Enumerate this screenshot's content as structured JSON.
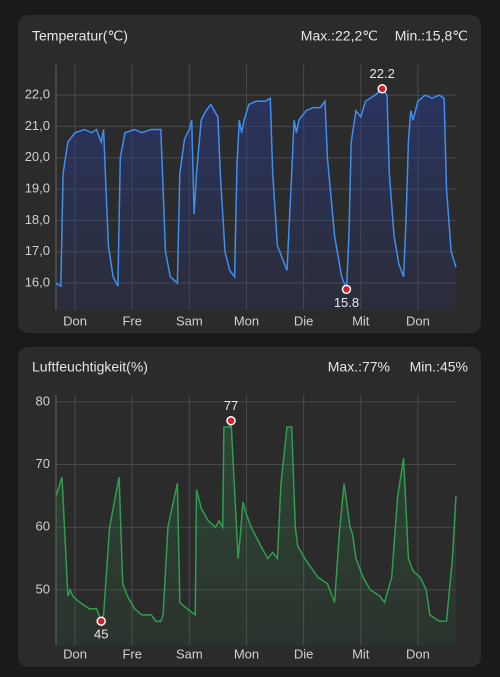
{
  "chart_data": [
    {
      "type": "line",
      "title": "Temperatur(℃)",
      "max_label": "Max.:22,2℃",
      "min_label": "Min.:15,8℃",
      "x": [
        0,
        2,
        3,
        5,
        8,
        12,
        15,
        17,
        19,
        20,
        21,
        22,
        24,
        26,
        27,
        29,
        33,
        36,
        40,
        44,
        45,
        46,
        48,
        51,
        52,
        54,
        56,
        57,
        58,
        59,
        61,
        63,
        65,
        68,
        69,
        71,
        73,
        75,
        76,
        77,
        78,
        79,
        81,
        84,
        88,
        90,
        91,
        93,
        95,
        97,
        99,
        100,
        101,
        102,
        105,
        108,
        111,
        113,
        114,
        117,
        120,
        122,
        123,
        124,
        126,
        128,
        130,
        134,
        137,
        139,
        140,
        142,
        144,
        146,
        147,
        148,
        149,
        150,
        152,
        155,
        158,
        161,
        163,
        164,
        166,
        168
      ],
      "series": [
        {
          "color": "#3d8ef0",
          "values": [
            16.0,
            15.9,
            19.5,
            20.5,
            20.8,
            20.9,
            20.8,
            20.9,
            20.5,
            20.9,
            19.0,
            17.2,
            16.2,
            15.9,
            20.0,
            20.8,
            20.9,
            20.8,
            20.9,
            20.9,
            19.0,
            17.0,
            16.2,
            16.0,
            19.5,
            20.6,
            20.9,
            21.2,
            18.2,
            19.5,
            21.2,
            21.5,
            21.7,
            21.3,
            19.5,
            17.0,
            16.4,
            16.2,
            19.8,
            21.2,
            20.8,
            21.2,
            21.7,
            21.8,
            21.8,
            21.9,
            19.5,
            17.2,
            16.8,
            16.4,
            19.5,
            21.2,
            20.8,
            21.2,
            21.5,
            21.6,
            21.6,
            21.8,
            20.0,
            17.5,
            16.2,
            15.8,
            17.5,
            20.5,
            21.5,
            21.3,
            21.8,
            22.0,
            22.2,
            22.0,
            19.5,
            17.5,
            16.6,
            16.2,
            18.0,
            20.5,
            21.5,
            21.2,
            21.8,
            22.0,
            21.9,
            22.0,
            21.9,
            19.0,
            17.0,
            16.5
          ],
          "value_labels": [
            null,
            null,
            null,
            null,
            null,
            null,
            null,
            null,
            null,
            null,
            null,
            null,
            null,
            null,
            null,
            null,
            null,
            null,
            null,
            null,
            null,
            null,
            null,
            null,
            null,
            null,
            null,
            null,
            null,
            null,
            null,
            null,
            null,
            null,
            null,
            null,
            null,
            null,
            null,
            null,
            null,
            null,
            null,
            null,
            null,
            null,
            null,
            null,
            null,
            null,
            null,
            null,
            null,
            null,
            null,
            null,
            null,
            null,
            null,
            null,
            null,
            "15.8",
            null,
            null,
            null,
            null,
            null,
            null,
            "22.2",
            null,
            null,
            null,
            null,
            null,
            null,
            null,
            null,
            null,
            null,
            null,
            null,
            null,
            null,
            null,
            null,
            null
          ]
        }
      ],
      "xlim": [
        0,
        168
      ],
      "xticks": [
        {
          "value": 8,
          "label": "Don"
        },
        {
          "value": 32,
          "label": "Fre"
        },
        {
          "value": 56,
          "label": "Sam"
        },
        {
          "value": 80,
          "label": "Mon"
        },
        {
          "value": 104,
          "label": "Die"
        },
        {
          "value": 128,
          "label": "Mit"
        },
        {
          "value": 152,
          "label": "Don"
        }
      ],
      "ylim": [
        15.14,
        22.96
      ],
      "yticks": [
        {
          "value": 16,
          "label": "16,0"
        },
        {
          "value": 17,
          "label": "17,0"
        },
        {
          "value": 18,
          "label": "18,0"
        },
        {
          "value": 19,
          "label": "19,0"
        },
        {
          "value": 20,
          "label": "20,0"
        },
        {
          "value": 21,
          "label": "21,0"
        },
        {
          "value": 22,
          "label": "22,0"
        }
      ],
      "grid": true
    },
    {
      "type": "line",
      "title": "Luftfeuchtigkeit(%)",
      "max_label": "Max.:77%",
      "min_label": "Min.:45%",
      "x": [
        0,
        2.5,
        5,
        6,
        7,
        10,
        14,
        17,
        18,
        19,
        20,
        22.5,
        26.5,
        28,
        30,
        33,
        36,
        40,
        42,
        44,
        45,
        47,
        51,
        52,
        55,
        58.5,
        59,
        61,
        64,
        67,
        68.5,
        70,
        70.5,
        73,
        73.5,
        76.5,
        77.5,
        78.5,
        80,
        82,
        86,
        89,
        91,
        93,
        94.5,
        97,
        99,
        100.5,
        101.5,
        104.5,
        110,
        114,
        117,
        119,
        121,
        123.5,
        124.5,
        126,
        129,
        132,
        136,
        138,
        141,
        143.5,
        146,
        148,
        150,
        153,
        155.5,
        157,
        161,
        164,
        166.5,
        168
      ],
      "series": [
        {
          "color": "#2e9e4e",
          "values": [
            65,
            68,
            49,
            50,
            49,
            48,
            47,
            47,
            46,
            45,
            46,
            60,
            68,
            51,
            49,
            47,
            46,
            46,
            45,
            45,
            46,
            60,
            67,
            48,
            47,
            46,
            66,
            63,
            61,
            60,
            61,
            60,
            76,
            76,
            77,
            55,
            59,
            64,
            62,
            60,
            57,
            55,
            56,
            55,
            67,
            76,
            76,
            60,
            57,
            55,
            52,
            51,
            48,
            59,
            67,
            60,
            59,
            55,
            52,
            50,
            49,
            48,
            52,
            65,
            71,
            55,
            53,
            52,
            50,
            46,
            45,
            45,
            55,
            65
          ],
          "value_labels": [
            null,
            null,
            null,
            null,
            null,
            null,
            null,
            null,
            null,
            "45",
            null,
            null,
            null,
            null,
            null,
            null,
            null,
            null,
            null,
            null,
            null,
            null,
            null,
            null,
            null,
            null,
            null,
            null,
            null,
            null,
            null,
            null,
            null,
            null,
            "77",
            null,
            null,
            null,
            null,
            null,
            null,
            null,
            null,
            null,
            null,
            null,
            null,
            null,
            null,
            null,
            null,
            null,
            null,
            null,
            null,
            null,
            null,
            null,
            null,
            null,
            null,
            null,
            null,
            null,
            null,
            null,
            null,
            null,
            null,
            null,
            null,
            null,
            null,
            null
          ]
        }
      ],
      "xlim": [
        0,
        168
      ],
      "xticks": [
        {
          "value": 8,
          "label": "Don"
        },
        {
          "value": 32,
          "label": "Fre"
        },
        {
          "value": 56,
          "label": "Sam"
        },
        {
          "value": 80,
          "label": "Mon"
        },
        {
          "value": 104,
          "label": "Die"
        },
        {
          "value": 128,
          "label": "Mit"
        },
        {
          "value": 152,
          "label": "Don"
        }
      ],
      "ylim": [
        41.2,
        81.1
      ],
      "yticks": [
        50,
        60,
        70,
        80
      ],
      "grid": true
    }
  ]
}
